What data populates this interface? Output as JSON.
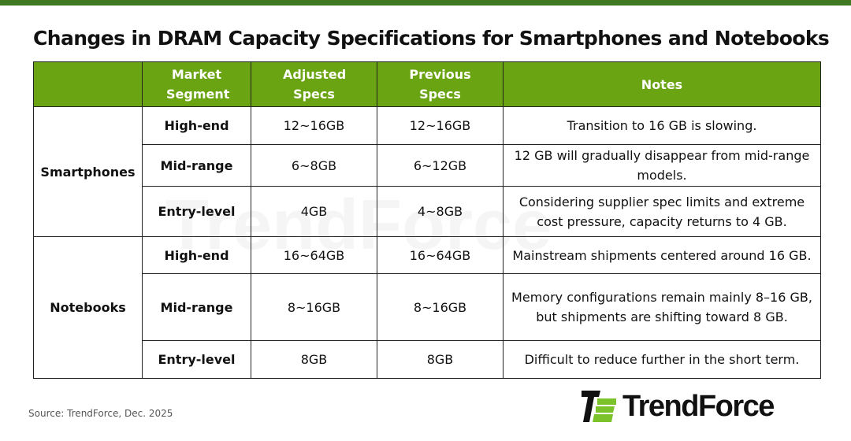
{
  "title": "Changes in DRAM Capacity Specifications for Smartphones and Notebooks",
  "headers": [
    "",
    "Market Segment",
    "Adjusted Specs",
    "Previous Specs",
    "Notes"
  ],
  "groups": [
    {
      "name": "Smartphones",
      "rows": [
        {
          "segment": "High-end",
          "adjusted": "12~16GB",
          "previous": "12~16GB",
          "notes": "Transition to 16 GB is slowing."
        },
        {
          "segment": "Mid-range",
          "adjusted": "6~8GB",
          "previous": "6~12GB",
          "notes": "12 GB will gradually disappear from mid-range models."
        },
        {
          "segment": "Entry-level",
          "adjusted": "4GB",
          "previous": "4~8GB",
          "notes": "Considering supplier spec limits and extreme cost pressure, capacity returns to 4 GB."
        }
      ]
    },
    {
      "name": "Notebooks",
      "rows": [
        {
          "segment": "High-end",
          "adjusted": "16~64GB",
          "previous": "16~64GB",
          "notes": "Mainstream shipments centered around 16 GB."
        },
        {
          "segment": "Mid-range",
          "adjusted": "8~16GB",
          "previous": "8~16GB",
          "notes": "Memory configurations remain mainly 8–16 GB, but shipments are shifting toward 8 GB."
        },
        {
          "segment": "Entry-level",
          "adjusted": "8GB",
          "previous": "8GB",
          "notes": "Difficult to reduce further in the short term."
        }
      ]
    }
  ],
  "source": "Source: TrendForce,  Dec. 2025",
  "logo_text": "TrendForce",
  "colors": {
    "top_bar": "#3f7a22",
    "header_bg": "#6aa412",
    "logo_green": "#7cc22a"
  }
}
